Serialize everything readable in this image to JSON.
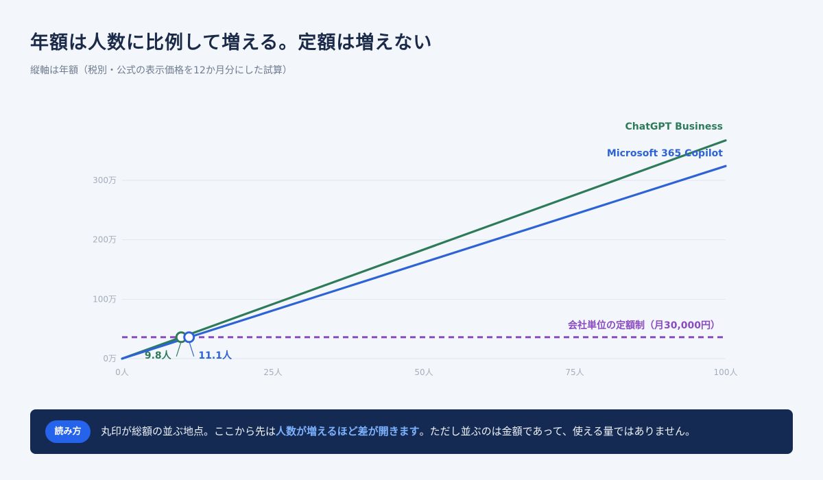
{
  "title": "年額は人数に比例して増える。定額は増えない",
  "subtitle": "縦軸は年額（税別・公式の表示価格を12か月分にした試算）",
  "colors": {
    "chatgpt": "#2e7b5a",
    "copilot": "#2e63d6",
    "flat": "#8a4bbf",
    "grid": "#dfe5ee"
  },
  "chart_data": {
    "type": "line",
    "x_ticks": [
      "0人",
      "25人",
      "50人",
      "75人",
      "100人"
    ],
    "x_tick_values": [
      0,
      25,
      50,
      75,
      100
    ],
    "y_ticks": [
      "0万",
      "100万",
      "200万",
      "300万"
    ],
    "y_tick_values": [
      0,
      1000000,
      2000000,
      3000000
    ],
    "xlim": [
      0,
      100
    ],
    "ylim": [
      0,
      3000000
    ],
    "grid": true,
    "series": [
      {
        "name": "ChatGPT Business",
        "key": "chatgpt",
        "x": [
          0,
          100
        ],
        "y": [
          0,
          3672000
        ]
      },
      {
        "name": "Microsoft 365 Copilot",
        "key": "copilot",
        "x": [
          0,
          100
        ],
        "y": [
          0,
          3240000
        ]
      }
    ],
    "reference_line": {
      "name": "会社単位の定額制（月30,000円）",
      "y": 360000,
      "style": "dashed"
    },
    "annotations": [
      {
        "series": "chatgpt",
        "x": 9.8,
        "label": "9.8人"
      },
      {
        "series": "copilot",
        "x": 11.1,
        "label": "11.1人"
      }
    ]
  },
  "note": {
    "badge": "読み方",
    "text_before": "丸印が総額の並ぶ地点。ここから先は",
    "highlight": "人数が増えるほど差が開きます",
    "text_after": "。ただし並ぶのは金額であって、使える量ではありません。"
  }
}
